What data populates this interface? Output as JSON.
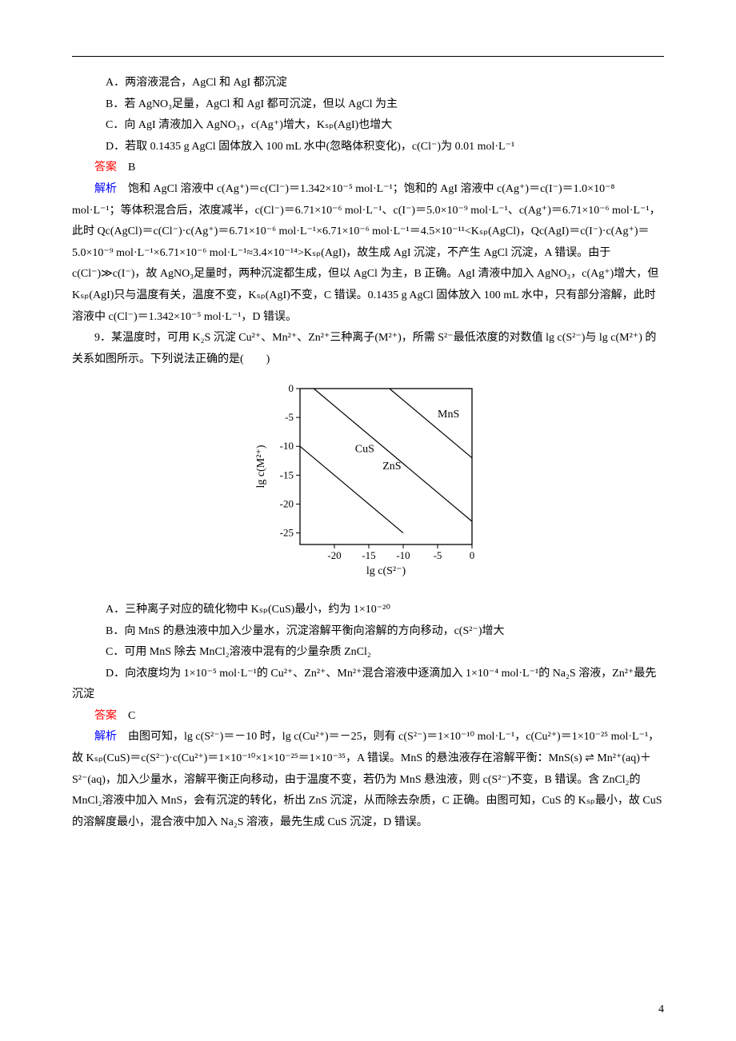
{
  "optionsA": {
    "a": "A．两溶液混合，AgCl 和 AgI 都沉淀",
    "b": "B．若 AgNO₃足量，AgCl 和 AgI 都可沉淀，但以 AgCl 为主",
    "c": "C．向 AgI 清液加入 AgNO₃，c(Ag⁺)增大，Kₛₚ(AgI)也增大",
    "d": "D．若取 0.1435 g AgCl 固体放入 100 mL 水中(忽略体积变化)，c(Cl⁻)为 0.01 mol·L⁻¹"
  },
  "answerLabel": "答案",
  "answerA": "B",
  "expLabel": "解析",
  "expA": "饱和 AgCl 溶液中 c(Ag⁺)＝c(Cl⁻)＝1.342×10⁻⁵ mol·L⁻¹；饱和的 AgI 溶液中 c(Ag⁺)＝c(I⁻)＝1.0×10⁻⁸ mol·L⁻¹；等体积混合后，浓度减半，c(Cl⁻)＝6.71×10⁻⁶ mol·L⁻¹、c(I⁻)＝5.0×10⁻⁹ mol·L⁻¹、c(Ag⁺)＝6.71×10⁻⁶ mol·L⁻¹，此时 Qc(AgCl)＝c(Cl⁻)·c(Ag⁺)＝6.71×10⁻⁶ mol·L⁻¹×6.71×10⁻⁶ mol·L⁻¹＝4.5×10⁻¹¹<Kₛₚ(AgCl)，Qc(AgI)＝c(I⁻)·c(Ag⁺)＝5.0×10⁻⁹ mol·L⁻¹×6.71×10⁻⁶ mol·L⁻¹≈3.4×10⁻¹⁴>Kₛₚ(AgI)，故生成 AgI 沉淀，不产生 AgCl 沉淀，A 错误。由于 c(Cl⁻)≫c(I⁻)，故 AgNO₃足量时，两种沉淀都生成，但以 AgCl 为主，B 正确。AgI 清液中加入 AgNO₃，c(Ag⁺)增大，但 Kₛₚ(AgI)只与温度有关，温度不变，Kₛₚ(AgI)不变，C 错误。0.1435 g AgCl 固体放入 100 mL 水中，只有部分溶解，此时溶液中 c(Cl⁻)＝1.342×10⁻⁵ mol·L⁻¹，D 错误。",
  "q9": {
    "stem": "9．某温度时，可用 K₂S 沉淀 Cu²⁺、Mn²⁺、Zn²⁺三种离子(M²⁺)，所需 S²⁻最低浓度的对数值 lg c(S²⁻)与 lg c(M²⁺) 的关系如图所示。下列说法正确的是(　　)"
  },
  "chart": {
    "xlabel": "lg c(S²⁻)",
    "ylabel": "lg c(M²⁺)",
    "xticks": [
      -20,
      -15,
      -10,
      -5,
      0
    ],
    "yticks": [
      -25,
      -20,
      -15,
      -10,
      -5,
      0
    ],
    "x_range": [
      -25,
      0
    ],
    "y_range": [
      -27,
      0
    ],
    "font_family": "Times New Roman, serif",
    "tick_fontsize": 13,
    "label_fontsize": 14,
    "line_color": "#000000",
    "line_width": 1.2,
    "background_color": "#ffffff",
    "lines": {
      "MnS": {
        "label": "MnS",
        "points": [
          [
            -12,
            0
          ],
          [
            0,
            -12
          ]
        ],
        "label_xy": [
          -5,
          -5
        ]
      },
      "CuS": {
        "label": "CuS",
        "points": [
          [
            -25,
            -10
          ],
          [
            -10,
            -25
          ]
        ],
        "label_xy": [
          -17,
          -11
        ]
      },
      "ZnS": {
        "label": "ZnS",
        "points": [
          [
            -23,
            0
          ],
          [
            0,
            -23
          ]
        ],
        "label_xy": [
          -13,
          -14
        ]
      }
    }
  },
  "optionsB": {
    "a": "A．三种离子对应的硫化物中 Kₛₚ(CuS)最小，约为 1×10⁻²⁰",
    "b": "B．向 MnS 的悬浊液中加入少量水，沉淀溶解平衡向溶解的方向移动，c(S²⁻)增大",
    "c": "C．可用 MnS 除去 MnCl₂溶液中混有的少量杂质 ZnCl₂",
    "d": "D．向浓度均为 1×10⁻⁵ mol·L⁻¹的 Cu²⁺、Zn²⁺、Mn²⁺混合溶液中逐滴加入 1×10⁻⁴ mol·L⁻¹的 Na₂S 溶液，Zn²⁺最先沉淀"
  },
  "answerB": "C",
  "expB": "由图可知，lg c(S²⁻)＝－10 时，lg c(Cu²⁺)＝－25，则有 c(S²⁻)＝1×10⁻¹⁰ mol·L⁻¹，c(Cu²⁺)＝1×10⁻²⁵ mol·L⁻¹，故 Kₛₚ(CuS)＝c(S²⁻)·c(Cu²⁺)＝1×10⁻¹⁰×1×10⁻²⁵＝1×10⁻³⁵，A 错误。MnS 的悬浊液存在溶解平衡：MnS(s) ⇌ Mn²⁺(aq)＋S²⁻(aq)，加入少量水，溶解平衡正向移动，由于温度不变，若仍为 MnS 悬浊液，则 c(S²⁻)不变，B 错误。含 ZnCl₂的 MnCl₂溶液中加入 MnS，会有沉淀的转化，析出 ZnS 沉淀，从而除去杂质，C 正确。由图可知，CuS 的 Kₛₚ最小，故 CuS 的溶解度最小，混合液中加入 Na₂S 溶液，最先生成 CuS 沉淀，D 错误。",
  "pageNum": "4"
}
